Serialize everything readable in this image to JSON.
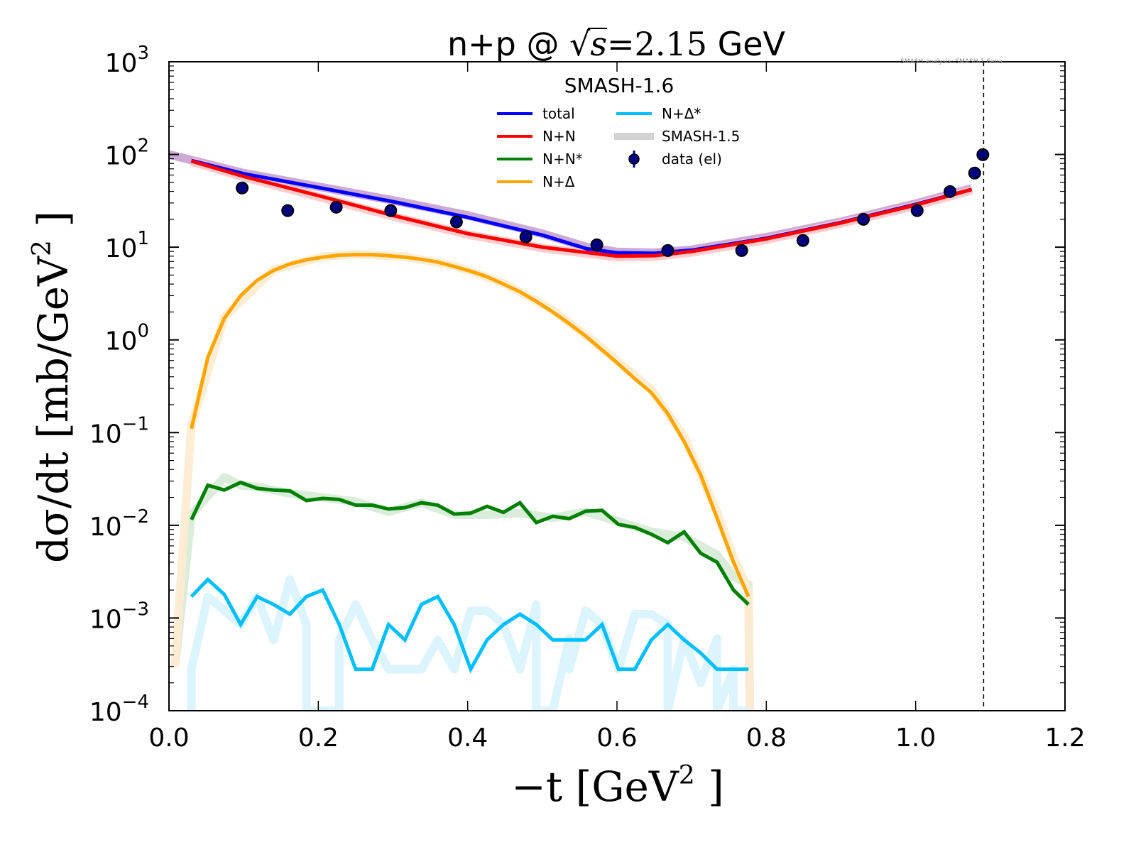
{
  "chart_data": {
    "type": "line",
    "title": {
      "prefix": "n+p @ ",
      "sqrt": "√s",
      "suffix_math": "=2.15",
      "suffix": " GeV"
    },
    "watermark": "SMASH analysis: SMASH-1.6ana",
    "xlabel": {
      "main": "−t [GeV",
      "sup": "2",
      "end": " ]"
    },
    "ylabel": {
      "main": "dσ/dt [mb/GeV",
      "sup": "2",
      "end": " ]"
    },
    "xlim": [
      0.0,
      1.2
    ],
    "ylim": [
      0.0001,
      1000
    ],
    "yscale": "log",
    "grid": false,
    "x_ticks": [
      "0.0",
      "0.2",
      "0.4",
      "0.6",
      "0.8",
      "1.0",
      "1.2"
    ],
    "x_tick_values": [
      0.0,
      0.2,
      0.4,
      0.6,
      0.8,
      1.0,
      1.2
    ],
    "y_ticks": [
      {
        "base": "10",
        "exp": "3",
        "value": 1000
      },
      {
        "base": "10",
        "exp": "2",
        "value": 100
      },
      {
        "base": "10",
        "exp": "1",
        "value": 10
      },
      {
        "base": "10",
        "exp": "0",
        "value": 1
      },
      {
        "base": "10",
        "exp": "−1",
        "value": 0.1
      },
      {
        "base": "10",
        "exp": "−2",
        "value": 0.01
      },
      {
        "base": "10",
        "exp": "−3",
        "value": 0.001
      },
      {
        "base": "10",
        "exp": "−4",
        "value": 0.0001
      }
    ],
    "vline": {
      "x": 1.091,
      "style": "dashed"
    },
    "legend": {
      "title": "SMASH-1.6",
      "placement": "top-center",
      "entries": [
        {
          "label": "total",
          "color": "#0000ff",
          "kind": "line"
        },
        {
          "label": "N+N",
          "color": "#ff0000",
          "kind": "line"
        },
        {
          "label": "N+N*",
          "color": "#008000",
          "kind": "line"
        },
        {
          "label": "N+Δ",
          "color": "#ffa500",
          "kind": "line"
        },
        {
          "label": "N+Δ*",
          "color": "#00bfff",
          "kind": "line"
        },
        {
          "label": "SMASH-1.5",
          "color": "#d3d3d3",
          "kind": "band"
        },
        {
          "label": "data (el)",
          "color": "#000080",
          "kind": "marker"
        }
      ]
    },
    "series": [
      {
        "name": "total",
        "color": "#0000ff",
        "x": [
          0.03,
          0.1,
          0.2,
          0.3,
          0.4,
          0.5,
          0.56,
          0.6,
          0.65,
          0.7,
          0.8,
          0.9,
          1.0,
          1.075
        ],
        "y": [
          86,
          62,
          44,
          31,
          21,
          13.5,
          9.6,
          8.7,
          8.6,
          9.3,
          12.5,
          18.5,
          29,
          42
        ]
      },
      {
        "name": "N+N",
        "color": "#ff0000",
        "x": [
          0.03,
          0.1,
          0.2,
          0.3,
          0.4,
          0.5,
          0.6,
          0.65,
          0.7,
          0.8,
          0.9,
          1.0,
          1.075
        ],
        "y": [
          85,
          58,
          36,
          22,
          14,
          10,
          8.0,
          8.1,
          9.0,
          12.3,
          18.3,
          28.5,
          42
        ]
      },
      {
        "name": "N+N*",
        "color": "#008000",
        "x": [
          0.03,
          0.052,
          0.074,
          0.096,
          0.118,
          0.14,
          0.162,
          0.184,
          0.206,
          0.228,
          0.25,
          0.272,
          0.294,
          0.316,
          0.338,
          0.36,
          0.382,
          0.404,
          0.426,
          0.448,
          0.47,
          0.492,
          0.514,
          0.536,
          0.558,
          0.58,
          0.602,
          0.624,
          0.646,
          0.668,
          0.69,
          0.712,
          0.734,
          0.756,
          0.776
        ],
        "y": [
          0.0115,
          0.027,
          0.024,
          0.029,
          0.025,
          0.024,
          0.0235,
          0.0185,
          0.0195,
          0.019,
          0.0165,
          0.0165,
          0.015,
          0.0155,
          0.0175,
          0.0165,
          0.0132,
          0.0135,
          0.016,
          0.0138,
          0.0175,
          0.0107,
          0.0125,
          0.0118,
          0.0142,
          0.0145,
          0.0102,
          0.0095,
          0.008,
          0.0065,
          0.0085,
          0.005,
          0.004,
          0.002,
          0.0014
        ]
      },
      {
        "name": "N+Δ",
        "color": "#ffa500",
        "x": [
          0.03,
          0.052,
          0.074,
          0.096,
          0.118,
          0.14,
          0.162,
          0.184,
          0.206,
          0.228,
          0.25,
          0.272,
          0.294,
          0.316,
          0.338,
          0.36,
          0.382,
          0.404,
          0.426,
          0.448,
          0.47,
          0.492,
          0.514,
          0.536,
          0.558,
          0.58,
          0.602,
          0.624,
          0.646,
          0.668,
          0.69,
          0.712,
          0.734,
          0.756,
          0.776
        ],
        "y": [
          0.11,
          0.65,
          1.7,
          3.0,
          4.4,
          5.6,
          6.6,
          7.3,
          7.8,
          8.2,
          8.3,
          8.3,
          8.1,
          7.8,
          7.4,
          6.9,
          6.2,
          5.5,
          4.8,
          4.0,
          3.3,
          2.6,
          2.0,
          1.5,
          1.1,
          0.78,
          0.55,
          0.38,
          0.27,
          0.16,
          0.08,
          0.035,
          0.012,
          0.004,
          0.0017
        ]
      },
      {
        "name": "N+Δ*",
        "color": "#00bfff",
        "x": [
          0.03,
          0.052,
          0.074,
          0.096,
          0.118,
          0.14,
          0.162,
          0.184,
          0.206,
          0.228,
          0.25,
          0.272,
          0.294,
          0.316,
          0.338,
          0.36,
          0.382,
          0.404,
          0.426,
          0.448,
          0.47,
          0.492,
          0.514,
          0.536,
          0.558,
          0.58,
          0.602,
          0.624,
          0.646,
          0.668,
          0.69,
          0.712,
          0.734,
          0.756,
          0.776
        ],
        "y": [
          0.0017,
          0.0026,
          0.0018,
          0.00085,
          0.0017,
          0.0014,
          0.0011,
          0.0017,
          0.002,
          0.00085,
          0.00028,
          0.00028,
          0.00085,
          0.00058,
          0.0014,
          0.0017,
          0.00085,
          0.00028,
          0.00058,
          0.00085,
          0.0011,
          0.00085,
          0.00058,
          0.00058,
          0.00058,
          0.00085,
          0.00028,
          0.00028,
          0.00058,
          0.00085,
          0.00058,
          0.00042,
          0.00028,
          0.00028,
          0.00028
        ]
      }
    ],
    "smash15_bands": [
      {
        "name": "total (SMASH-1.5)",
        "color": "#c8a0d0",
        "x": [
          0.0,
          0.03,
          0.1,
          0.2,
          0.3,
          0.4,
          0.5,
          0.56,
          0.6,
          0.65,
          0.7,
          0.8,
          0.9,
          1.0,
          1.075
        ],
        "y": [
          100,
          87,
          63,
          45,
          32,
          22,
          14,
          10,
          8.9,
          8.7,
          9.4,
          12.8,
          18.8,
          29.5,
          43
        ]
      },
      {
        "name": "N+N (SMASH-1.5)",
        "color": "#ffc8c8",
        "x": [
          0.03,
          0.1,
          0.2,
          0.3,
          0.4,
          0.5,
          0.6,
          0.65,
          0.7,
          0.8,
          0.9,
          1.0,
          1.075
        ],
        "y": [
          84,
          57,
          35,
          21.5,
          13.7,
          9.8,
          7.8,
          7.9,
          8.8,
          12,
          18,
          28,
          41
        ]
      },
      {
        "name": "N+N* (SMASH-1.5)",
        "color": "#d6ead6",
        "x": [
          0.008,
          0.03,
          0.074,
          0.096,
          0.118,
          0.162,
          0.206,
          0.25,
          0.294,
          0.338,
          0.382,
          0.426,
          0.47,
          0.514,
          0.558,
          0.602,
          0.646,
          0.69,
          0.734,
          0.756,
          0.776,
          0.778
        ],
        "y": [
          0.0003,
          0.013,
          0.033,
          0.027,
          0.026,
          0.022,
          0.02,
          0.018,
          0.014,
          0.0175,
          0.013,
          0.013,
          0.0135,
          0.012,
          0.014,
          0.011,
          0.0085,
          0.0075,
          0.0048,
          0.0028,
          0.0023,
          0.0001
        ]
      },
      {
        "name": "N+Δ (SMASH-1.5)",
        "color": "#fdebd0",
        "x": [
          0.008,
          0.03,
          0.074,
          0.14,
          0.206,
          0.25,
          0.316,
          0.382,
          0.448,
          0.514,
          0.58,
          0.646,
          0.69,
          0.734,
          0.756,
          0.776,
          0.778
        ],
        "y": [
          0.0003,
          0.12,
          1.75,
          5.7,
          7.9,
          8.4,
          7.9,
          6.3,
          4.1,
          2.1,
          0.82,
          0.29,
          0.09,
          0.014,
          0.0045,
          0.002,
          0.0001
        ]
      },
      {
        "name": "N+Δ* (SMASH-1.5)",
        "color": "#d8f3fd",
        "x": [
          0.03,
          0.03,
          0.052,
          0.074,
          0.096,
          0.118,
          0.14,
          0.162,
          0.184,
          0.184,
          0.228,
          0.228,
          0.25,
          0.272,
          0.294,
          0.316,
          0.338,
          0.36,
          0.382,
          0.404,
          0.426,
          0.448,
          0.47,
          0.492,
          0.492,
          0.514,
          0.536,
          0.536,
          0.558,
          0.58,
          0.602,
          0.624,
          0.646,
          0.668,
          0.668,
          0.69,
          0.712,
          0.734,
          0.734,
          0.756,
          0.756,
          0.776
        ],
        "y": [
          0.0001,
          0.00028,
          0.0017,
          0.0012,
          0.00085,
          0.0017,
          0.00058,
          0.0026,
          0.00085,
          0.0001,
          0.0001,
          0.00058,
          0.0014,
          0.00058,
          0.00028,
          0.00028,
          0.00028,
          0.00058,
          0.00028,
          0.0012,
          0.0012,
          0.00085,
          0.00028,
          0.0014,
          0.0001,
          0.0001,
          0.0006,
          0.00028,
          0.0012,
          0.00085,
          0.00028,
          0.0011,
          0.0011,
          0.00085,
          0.0001,
          0.00058,
          0.0002,
          0.0006,
          0.0001,
          0.00028,
          0.0001,
          0.0001
        ]
      }
    ],
    "data_points": {
      "name": "data (el)",
      "color": "#000080",
      "x": [
        0.098,
        0.159,
        0.224,
        0.297,
        0.385,
        0.478,
        0.573,
        0.668,
        0.767,
        0.849,
        0.93,
        1.002,
        1.046,
        1.079,
        1.09
      ],
      "y": [
        43.5,
        24.8,
        27.0,
        24.8,
        18.7,
        12.9,
        10.6,
        9.2,
        9.2,
        11.8,
        20.0,
        24.8,
        39.8,
        63,
        99.5
      ]
    }
  }
}
